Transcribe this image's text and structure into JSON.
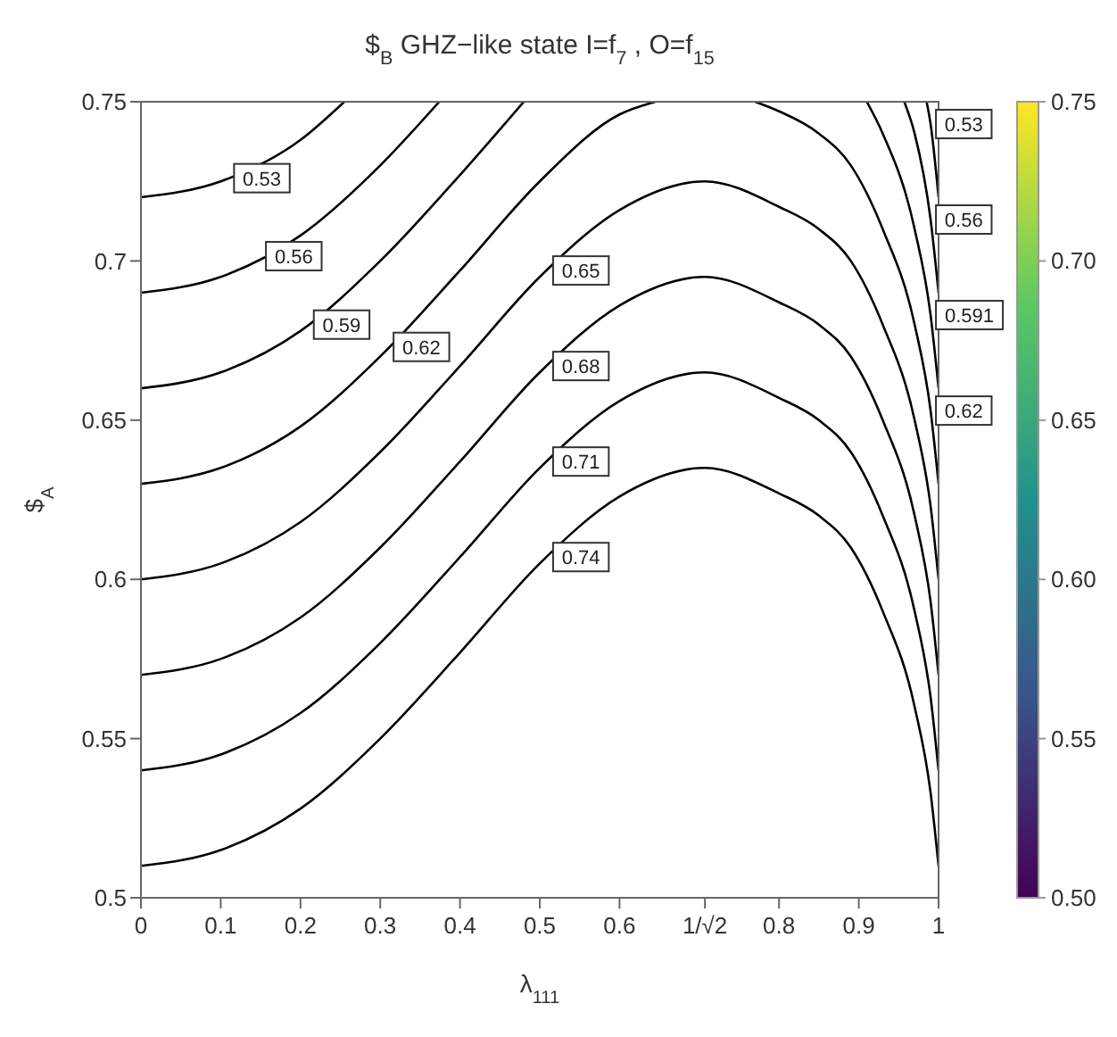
{
  "chart_data": {
    "type": "line",
    "title": "$$_{B}$   GHZ−like state I=f$_{7}$ , O=f$_{15}$",
    "xlabel": "λ$_{111}$",
    "ylabel": "$$_{A}$",
    "xlim": [
      0,
      1
    ],
    "ylim": [
      0.5,
      0.75
    ],
    "xticks": [
      0,
      0.1,
      0.2,
      0.3,
      0.4,
      0.5,
      0.6,
      {
        "value": 0.7071,
        "label": "1/√2"
      },
      0.8,
      0.9,
      1
    ],
    "yticks": [
      0.5,
      0.55,
      0.6,
      0.65,
      0.7,
      0.75
    ],
    "clim": [
      0.5,
      0.75
    ],
    "cticks": [
      {
        "value": 0.5,
        "label": "0.50"
      },
      {
        "value": 0.55,
        "label": "0.55"
      },
      {
        "value": 0.6,
        "label": "0.60"
      },
      {
        "value": 0.65,
        "label": "0.65"
      },
      {
        "value": 0.7,
        "label": "0.70"
      },
      {
        "value": 0.75,
        "label": "0.75"
      }
    ],
    "grid": false,
    "series": [
      {
        "color": "#000000",
        "x": [
          0,
          0.1,
          0.2,
          0.255,
          0.6,
          0.985,
          0.99,
          1
        ],
        "values": [
          0.72,
          0.725,
          0.738,
          0.75,
          null,
          0.75,
          0.743,
          0.72
        ]
      },
      {
        "color": "#000000",
        "x": [
          0,
          0.1,
          0.2,
          0.3,
          0.374,
          0.707,
          0.957,
          0.97,
          0.99,
          1
        ],
        "values": [
          0.69,
          0.695,
          0.708,
          0.73,
          0.75,
          null,
          0.75,
          0.74,
          0.713,
          0.69
        ]
      },
      {
        "color": "#000000",
        "x": [
          0,
          0.1,
          0.2,
          0.3,
          0.4,
          0.48,
          0.707,
          0.91,
          0.93,
          0.97,
          0.99,
          1
        ],
        "values": [
          0.66,
          0.665,
          0.678,
          0.7,
          0.727,
          0.75,
          null,
          0.75,
          0.74,
          0.71,
          0.683,
          0.66
        ]
      },
      {
        "color": "#000000",
        "x": [
          0,
          0.1,
          0.2,
          0.3,
          0.4,
          0.5,
          0.6,
          0.645,
          0.707,
          0.77,
          0.8,
          0.85,
          0.89,
          0.93,
          0.97,
          0.99,
          1
        ],
        "values": [
          0.63,
          0.635,
          0.648,
          0.67,
          0.697,
          0.725,
          0.746,
          0.75,
          null,
          0.75,
          0.747,
          0.74,
          0.73,
          0.71,
          0.68,
          0.653,
          0.63
        ]
      },
      {
        "color": "#000000",
        "x": [
          0,
          0.1,
          0.2,
          0.3,
          0.4,
          0.5,
          0.6,
          0.707,
          0.8,
          0.85,
          0.89,
          0.93,
          0.97,
          0.99,
          1
        ],
        "values": [
          0.6,
          0.605,
          0.618,
          0.64,
          0.667,
          0.695,
          0.716,
          0.725,
          0.717,
          0.71,
          0.7,
          0.68,
          0.65,
          0.623,
          0.6
        ]
      },
      {
        "color": "#000000",
        "x": [
          0,
          0.1,
          0.2,
          0.3,
          0.4,
          0.5,
          0.6,
          0.707,
          0.8,
          0.85,
          0.89,
          0.93,
          0.97,
          0.99,
          1
        ],
        "values": [
          0.57,
          0.575,
          0.588,
          0.61,
          0.637,
          0.665,
          0.686,
          0.695,
          0.687,
          0.68,
          0.67,
          0.65,
          0.62,
          0.593,
          0.57
        ]
      },
      {
        "color": "#000000",
        "x": [
          0,
          0.1,
          0.2,
          0.3,
          0.4,
          0.5,
          0.6,
          0.707,
          0.8,
          0.85,
          0.89,
          0.93,
          0.97,
          0.99,
          1
        ],
        "values": [
          0.54,
          0.545,
          0.558,
          0.58,
          0.607,
          0.635,
          0.656,
          0.665,
          0.657,
          0.65,
          0.64,
          0.62,
          0.59,
          0.563,
          0.54
        ]
      },
      {
        "color": "#000000",
        "x": [
          0,
          0.1,
          0.2,
          0.3,
          0.4,
          0.5,
          0.6,
          0.707,
          0.8,
          0.85,
          0.89,
          0.93,
          0.97,
          0.99,
          1
        ],
        "values": [
          0.51,
          0.515,
          0.528,
          0.55,
          0.577,
          0.605,
          0.626,
          0.635,
          0.627,
          0.62,
          0.61,
          0.59,
          0.56,
          0.533,
          0.51
        ]
      }
    ],
    "annotations": [
      {
        "text": "0.53",
        "x": 0.11,
        "y": 0.726
      },
      {
        "text": "0.56",
        "x": 0.15,
        "y": 0.7015
      },
      {
        "text": "0.59",
        "x": 0.21,
        "y": 0.68
      },
      {
        "text": "0.62",
        "x": 0.31,
        "y": 0.673
      },
      {
        "text": "0.65",
        "x": 0.51,
        "y": 0.697
      },
      {
        "text": "0.68",
        "x": 0.51,
        "y": 0.667
      },
      {
        "text": "0.71",
        "x": 0.51,
        "y": 0.637
      },
      {
        "text": "0.74",
        "x": 0.51,
        "y": 0.607
      },
      {
        "text": "0.53",
        "x": 0.99,
        "y": 0.743
      },
      {
        "text": "0.56",
        "x": 0.99,
        "y": 0.713
      },
      {
        "text": "0.591",
        "x": 0.99,
        "y": 0.683
      },
      {
        "text": "0.62",
        "x": 0.99,
        "y": 0.653
      }
    ]
  }
}
